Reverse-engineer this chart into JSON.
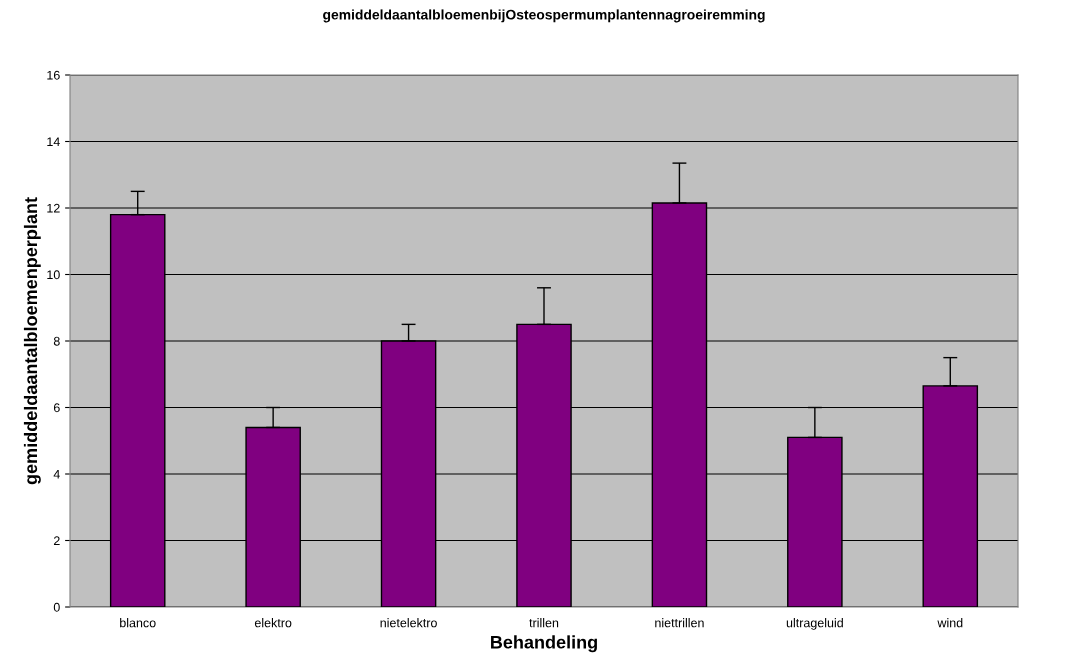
{
  "chart_data": {
    "type": "bar",
    "title": "gemiddeldaantalbloemenbijOsteospermumplantennagroeiremming",
    "xlabel": "Behandeling",
    "ylabel": "gemiddeldaantalbloemenperplant",
    "categories": [
      "blanco",
      "elektro",
      "nietelektro",
      "trillen",
      "niettrillen",
      "ultrageluid",
      "wind"
    ],
    "values": [
      11.8,
      5.4,
      8.0,
      8.5,
      12.15,
      5.1,
      6.65
    ],
    "errors": [
      [
        11.8,
        12.5
      ],
      [
        5.4,
        6.0
      ],
      [
        8.0,
        8.5
      ],
      [
        8.5,
        9.6
      ],
      [
        12.15,
        13.35
      ],
      [
        5.1,
        6.0
      ],
      [
        6.65,
        7.5
      ]
    ],
    "color": "#800080",
    "ylim": [
      0,
      16
    ],
    "yticks": [
      0,
      2,
      4,
      6,
      8,
      10,
      12,
      14,
      16
    ],
    "grid": "y"
  }
}
